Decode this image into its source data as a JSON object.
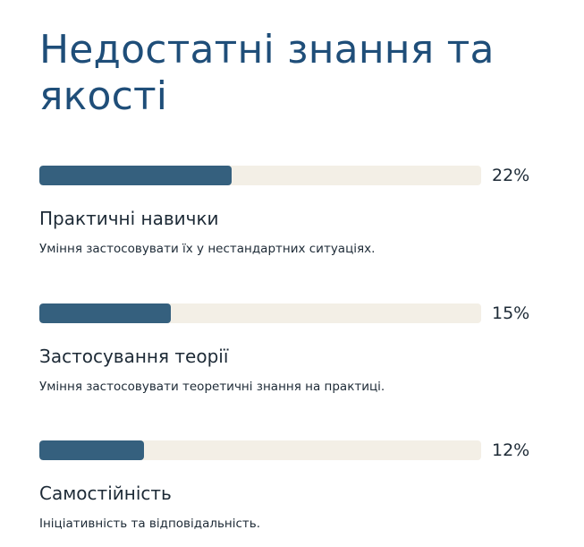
{
  "title": "Недостатні знання та якості",
  "colors": {
    "title": "#1f4e79",
    "bar_fill": "#35607e",
    "bar_track": "#f3efe6",
    "text": "#1d2a36"
  },
  "items": [
    {
      "percent": 22,
      "percent_label": "22%",
      "name": "Практичні навички",
      "description": "Уміння застосовувати їх у нестандартних ситуаціях."
    },
    {
      "percent": 15,
      "percent_label": "15%",
      "name": "Застосування теорії",
      "description": "Уміння застосовувати теоретичні знання на практиці."
    },
    {
      "percent": 12,
      "percent_label": "12%",
      "name": "Самостійність",
      "description": "Ініціативність та відповідальність."
    }
  ]
}
